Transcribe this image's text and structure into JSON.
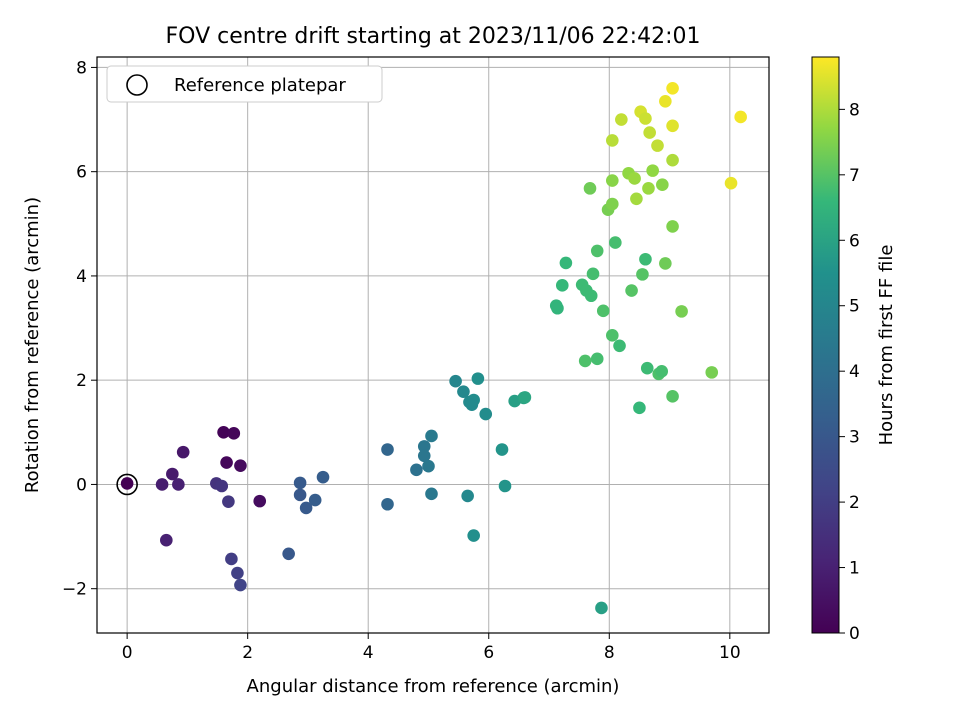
{
  "chart_data": {
    "type": "scatter",
    "title": "FOV centre drift starting at 2023/11/06 22:42:01",
    "xlabel": "Angular distance from reference (arcmin)",
    "ylabel": "Rotation from reference (arcmin)",
    "xlim": [
      -0.5,
      10.65
    ],
    "ylim": [
      -2.85,
      8.2
    ],
    "xticks": [
      0,
      2,
      4,
      6,
      8,
      10
    ],
    "yticks": [
      -2,
      0,
      2,
      4,
      6,
      8
    ],
    "grid": true,
    "legend": {
      "placement": "top-left",
      "entries": [
        "Reference platepar"
      ]
    },
    "reference_point": {
      "x": 0,
      "y": 0,
      "label": "Reference platepar"
    },
    "colorbar": {
      "label": "Hours from first FF file",
      "colormap": "viridis",
      "range": [
        0,
        8.8
      ],
      "ticks": [
        0,
        1,
        2,
        3,
        4,
        5,
        6,
        7,
        8
      ]
    },
    "points": [
      {
        "x": 0.0,
        "y": 0.02,
        "c": 0.0
      },
      {
        "x": 1.6,
        "y": 1.0,
        "c": 0.1
      },
      {
        "x": 1.77,
        "y": 0.98,
        "c": 0.15
      },
      {
        "x": 1.65,
        "y": 0.42,
        "c": 0.2
      },
      {
        "x": 1.88,
        "y": 0.36,
        "c": 0.3
      },
      {
        "x": 2.2,
        "y": -0.32,
        "c": 0.35
      },
      {
        "x": 0.93,
        "y": 0.62,
        "c": 0.7
      },
      {
        "x": 0.75,
        "y": 0.2,
        "c": 0.8
      },
      {
        "x": 0.58,
        "y": 0.0,
        "c": 0.9
      },
      {
        "x": 0.85,
        "y": 0.0,
        "c": 1.0
      },
      {
        "x": 0.65,
        "y": -1.07,
        "c": 1.0
      },
      {
        "x": 1.48,
        "y": 0.02,
        "c": 1.6
      },
      {
        "x": 1.57,
        "y": -0.03,
        "c": 1.7
      },
      {
        "x": 1.68,
        "y": -0.33,
        "c": 1.8
      },
      {
        "x": 1.73,
        "y": -1.43,
        "c": 2.0
      },
      {
        "x": 1.83,
        "y": -1.7,
        "c": 2.1
      },
      {
        "x": 1.88,
        "y": -1.93,
        "c": 2.2
      },
      {
        "x": 2.87,
        "y": 0.03,
        "c": 3.1
      },
      {
        "x": 3.25,
        "y": 0.14,
        "c": 3.2
      },
      {
        "x": 2.87,
        "y": -0.2,
        "c": 3.0
      },
      {
        "x": 2.97,
        "y": -0.45,
        "c": 3.1
      },
      {
        "x": 3.12,
        "y": -0.3,
        "c": 3.2
      },
      {
        "x": 2.68,
        "y": -1.33,
        "c": 3.0
      },
      {
        "x": 4.32,
        "y": 0.67,
        "c": 3.6
      },
      {
        "x": 4.32,
        "y": -0.38,
        "c": 3.6
      },
      {
        "x": 4.8,
        "y": 0.28,
        "c": 4.1
      },
      {
        "x": 4.93,
        "y": 0.73,
        "c": 4.3
      },
      {
        "x": 4.93,
        "y": 0.55,
        "c": 4.3
      },
      {
        "x": 5.0,
        "y": 0.35,
        "c": 4.4
      },
      {
        "x": 5.05,
        "y": 0.93,
        "c": 4.5
      },
      {
        "x": 5.05,
        "y": -0.18,
        "c": 4.4
      },
      {
        "x": 5.45,
        "y": 1.98,
        "c": 5.0
      },
      {
        "x": 5.58,
        "y": 1.78,
        "c": 5.1
      },
      {
        "x": 5.68,
        "y": 1.58,
        "c": 5.2
      },
      {
        "x": 5.75,
        "y": 1.62,
        "c": 5.3
      },
      {
        "x": 5.72,
        "y": 1.53,
        "c": 5.2
      },
      {
        "x": 5.82,
        "y": 2.03,
        "c": 5.4
      },
      {
        "x": 5.95,
        "y": 1.35,
        "c": 5.3
      },
      {
        "x": 5.65,
        "y": -0.22,
        "c": 5.1
      },
      {
        "x": 5.75,
        "y": -0.98,
        "c": 5.4
      },
      {
        "x": 6.22,
        "y": 0.67,
        "c": 5.6
      },
      {
        "x": 6.27,
        "y": -0.03,
        "c": 5.6
      },
      {
        "x": 6.43,
        "y": 1.6,
        "c": 5.9
      },
      {
        "x": 6.58,
        "y": 1.66,
        "c": 6.0
      },
      {
        "x": 6.6,
        "y": 1.67,
        "c": 6.1
      },
      {
        "x": 7.12,
        "y": 3.43,
        "c": 6.5
      },
      {
        "x": 7.14,
        "y": 3.38,
        "c": 6.5
      },
      {
        "x": 7.22,
        "y": 3.82,
        "c": 6.6
      },
      {
        "x": 7.28,
        "y": 4.25,
        "c": 6.6
      },
      {
        "x": 7.55,
        "y": 3.83,
        "c": 6.7
      },
      {
        "x": 7.62,
        "y": 3.72,
        "c": 6.7
      },
      {
        "x": 7.7,
        "y": 3.62,
        "c": 6.7
      },
      {
        "x": 7.73,
        "y": 4.04,
        "c": 6.8
      },
      {
        "x": 7.8,
        "y": 4.48,
        "c": 6.9
      },
      {
        "x": 7.6,
        "y": 2.37,
        "c": 6.9
      },
      {
        "x": 7.8,
        "y": 2.41,
        "c": 6.8
      },
      {
        "x": 7.9,
        "y": 3.33,
        "c": 6.9
      },
      {
        "x": 7.68,
        "y": 5.68,
        "c": 7.3
      },
      {
        "x": 8.05,
        "y": 2.86,
        "c": 6.9
      },
      {
        "x": 8.17,
        "y": 2.66,
        "c": 6.7
      },
      {
        "x": 8.1,
        "y": 4.64,
        "c": 6.8
      },
      {
        "x": 7.87,
        "y": -2.37,
        "c": 5.9
      },
      {
        "x": 8.37,
        "y": 3.72,
        "c": 7.0
      },
      {
        "x": 8.55,
        "y": 4.03,
        "c": 7.0
      },
      {
        "x": 8.6,
        "y": 4.32,
        "c": 6.7
      },
      {
        "x": 8.63,
        "y": 2.23,
        "c": 6.7
      },
      {
        "x": 8.82,
        "y": 2.12,
        "c": 6.9
      },
      {
        "x": 8.87,
        "y": 2.17,
        "c": 6.8
      },
      {
        "x": 8.5,
        "y": 1.47,
        "c": 6.6
      },
      {
        "x": 9.05,
        "y": 1.69,
        "c": 7.0
      },
      {
        "x": 9.2,
        "y": 3.32,
        "c": 7.4
      },
      {
        "x": 8.93,
        "y": 4.24,
        "c": 7.3
      },
      {
        "x": 9.7,
        "y": 2.15,
        "c": 7.4
      },
      {
        "x": 7.98,
        "y": 5.27,
        "c": 7.4
      },
      {
        "x": 8.05,
        "y": 5.38,
        "c": 7.5
      },
      {
        "x": 8.05,
        "y": 5.83,
        "c": 7.6
      },
      {
        "x": 8.32,
        "y": 5.97,
        "c": 7.7
      },
      {
        "x": 8.42,
        "y": 5.87,
        "c": 7.8
      },
      {
        "x": 8.45,
        "y": 5.48,
        "c": 7.9
      },
      {
        "x": 8.65,
        "y": 5.68,
        "c": 7.8
      },
      {
        "x": 8.72,
        "y": 6.02,
        "c": 7.7
      },
      {
        "x": 8.88,
        "y": 5.75,
        "c": 7.6
      },
      {
        "x": 9.05,
        "y": 4.95,
        "c": 7.5
      },
      {
        "x": 9.05,
        "y": 6.22,
        "c": 8.0
      },
      {
        "x": 8.05,
        "y": 6.6,
        "c": 8.1
      },
      {
        "x": 8.2,
        "y": 7.0,
        "c": 8.2
      },
      {
        "x": 8.52,
        "y": 7.15,
        "c": 8.4
      },
      {
        "x": 8.6,
        "y": 7.02,
        "c": 8.3
      },
      {
        "x": 8.67,
        "y": 6.75,
        "c": 8.2
      },
      {
        "x": 8.8,
        "y": 6.5,
        "c": 8.2
      },
      {
        "x": 8.93,
        "y": 7.35,
        "c": 8.6
      },
      {
        "x": 9.05,
        "y": 7.6,
        "c": 8.7
      },
      {
        "x": 9.05,
        "y": 6.88,
        "c": 8.5
      },
      {
        "x": 10.02,
        "y": 5.78,
        "c": 8.6
      },
      {
        "x": 10.18,
        "y": 7.05,
        "c": 8.7
      }
    ]
  }
}
